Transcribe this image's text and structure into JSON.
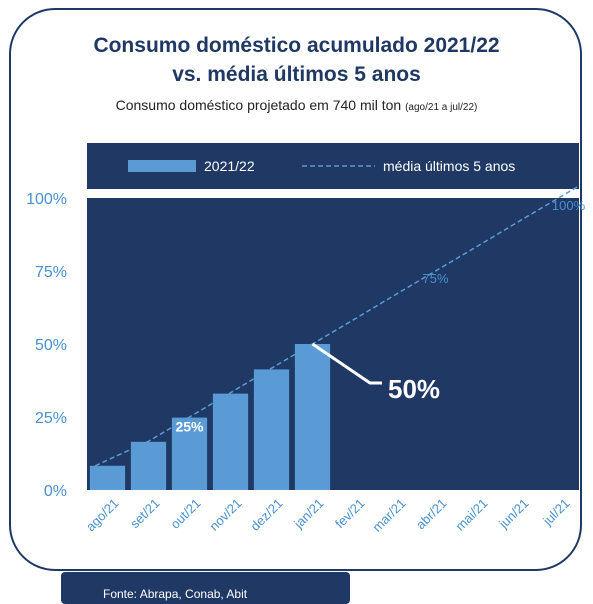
{
  "title_line1": "Consumo doméstico acumulado 2021/22",
  "title_line2": "vs. média últimos 5 anos",
  "subtitle_main": "Consumo doméstico projetado em 740 mil ton",
  "subtitle_period": "(ago/21 a jul/22)",
  "source": "Fonte: Abrapa, Conab, Abit",
  "colors": {
    "plot_bg": "#1f3864",
    "bar": "#5b9bd5",
    "line": "#5b9bd5",
    "axis_text": "#4a90d0",
    "title": "#1f3864"
  },
  "chart_data": {
    "type": "bar",
    "categories": [
      "ago/21",
      "set/21",
      "out/21",
      "nov/21",
      "dez/21",
      "jan/21",
      "fev/21",
      "mar/21",
      "abr/21",
      "mai/21",
      "jun/21",
      "jul/21"
    ],
    "series": [
      {
        "name": "2021/22",
        "type": "bar",
        "values": [
          8.3,
          16.5,
          24.8,
          33.0,
          41.3,
          50.0,
          null,
          null,
          null,
          null,
          null,
          null
        ]
      },
      {
        "name": "média últimos 5 anos",
        "type": "line",
        "style": "dashed",
        "values": [
          8.3,
          16.7,
          25.0,
          33.3,
          41.7,
          50.0,
          58.3,
          66.7,
          75.0,
          83.3,
          91.7,
          100.0
        ]
      }
    ],
    "yticks": [
      "0%",
      "25%",
      "50%",
      "75%",
      "100%"
    ],
    "ylim": [
      0,
      100
    ],
    "legend_position": "top",
    "annotations": [
      {
        "text": "25%",
        "category": "out/21",
        "style": "bold white in bar"
      },
      {
        "text": "50%",
        "category": "jan/21",
        "style": "large bold callout"
      },
      {
        "text": "75%",
        "category": "abr/21",
        "style": "line label"
      },
      {
        "text": "100%",
        "category": "jul/21",
        "style": "line label"
      }
    ]
  }
}
